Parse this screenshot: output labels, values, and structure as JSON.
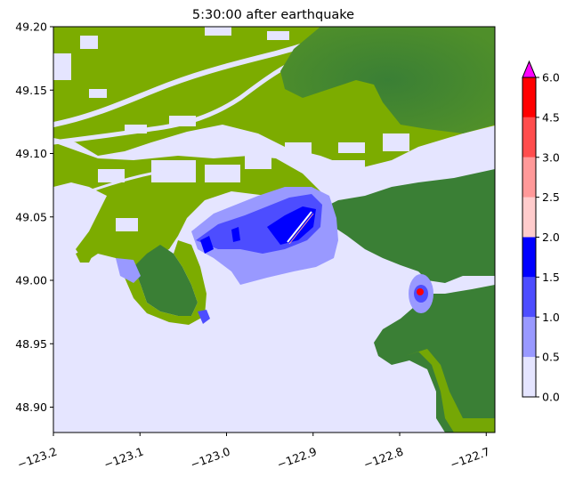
{
  "chart_data": {
    "type": "heatmap",
    "title": "5:30:00 after earthquake",
    "xlabel": "",
    "ylabel": "",
    "xlim": [
      -123.2,
      -122.69
    ],
    "ylim": [
      48.88,
      49.2
    ],
    "x_ticks": [
      -123.2,
      -123.1,
      -123.0,
      -122.9,
      -122.8,
      -122.7
    ],
    "x_tick_labels": [
      "−123.2",
      "−123.1",
      "−123.0",
      "−122.9",
      "−122.8",
      "−122.7"
    ],
    "y_ticks": [
      49.2,
      49.15,
      49.1,
      49.05,
      49.0,
      48.95,
      48.9
    ],
    "y_tick_labels": [
      "49.20",
      "49.15",
      "49.10",
      "49.05",
      "49.00",
      "48.95",
      "48.90"
    ],
    "colorbar": {
      "levels": [
        0.0,
        0.5,
        1.0,
        1.5,
        2.0,
        2.5,
        3.0,
        4.5,
        6.0
      ],
      "labels": [
        "0.0",
        "0.5",
        "1.0",
        "1.5",
        "2.0",
        "2.5",
        "3.0",
        "4.5",
        "6.0"
      ],
      "colors": [
        "#e5e5ff",
        "#9999ff",
        "#4d4dff",
        "#0000ff",
        "#ffcccc",
        "#ff9999",
        "#ff4d4d",
        "#ff0000"
      ],
      "extend_color": "#ff00ff"
    },
    "land_colors": {
      "lowland": "#7cac00",
      "upland": "#3a7f35"
    },
    "grid": false
  }
}
